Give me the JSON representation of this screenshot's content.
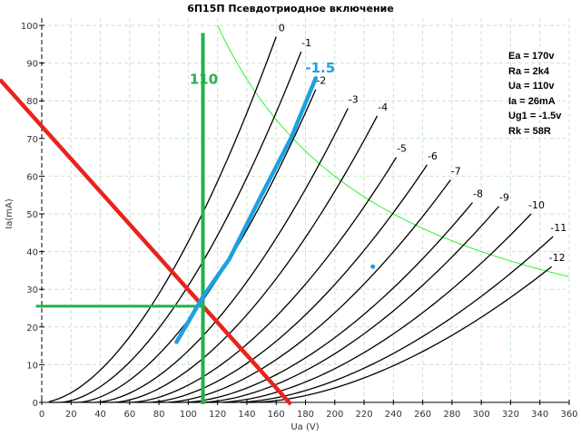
{
  "chart_data": {
    "type": "line",
    "title": "6П15П Псевдотриодное включение",
    "xlabel": "Ua (V)",
    "ylabel": "Ia(mA)",
    "xlim": [
      0,
      360
    ],
    "ylim": [
      0,
      100
    ],
    "xticks": [
      0,
      20,
      40,
      60,
      80,
      100,
      120,
      140,
      160,
      180,
      200,
      220,
      240,
      260,
      280,
      300,
      320,
      340,
      360
    ],
    "yticks": [
      0,
      10,
      20,
      30,
      40,
      50,
      60,
      70,
      80,
      90,
      100
    ],
    "grid": true,
    "curve_exponent": 1.75,
    "series": [
      {
        "name": "0",
        "u0": 0,
        "ua_end": 160,
        "ia_end": 97
      },
      {
        "name": "-1",
        "u0": 12,
        "ua_end": 177,
        "ia_end": 93
      },
      {
        "name": "-2",
        "u0": 24,
        "ua_end": 187,
        "ia_end": 83
      },
      {
        "name": "-3",
        "u0": 36,
        "ua_end": 209,
        "ia_end": 78
      },
      {
        "name": "-4",
        "u0": 48,
        "ua_end": 229,
        "ia_end": 76
      },
      {
        "name": "-5",
        "u0": 60,
        "ua_end": 242,
        "ia_end": 65
      },
      {
        "name": "-6",
        "u0": 72,
        "ua_end": 263,
        "ia_end": 63
      },
      {
        "name": "-7",
        "u0": 84,
        "ua_end": 279,
        "ia_end": 59
      },
      {
        "name": "-8",
        "u0": 96,
        "ua_end": 294,
        "ia_end": 53
      },
      {
        "name": "-9",
        "u0": 108,
        "ua_end": 312,
        "ia_end": 52
      },
      {
        "name": "-10",
        "u0": 120,
        "ua_end": 334,
        "ia_end": 50
      },
      {
        "name": "-11",
        "u0": 132,
        "ua_end": 349,
        "ia_end": 44
      },
      {
        "name": "-12",
        "u0": 143,
        "ua_end": 348,
        "ia_end": 36
      }
    ],
    "load_line": {
      "points": [
        [
          -28.5,
          85.6
        ],
        [
          170,
          -0.5
        ]
      ],
      "color": "#e8231e"
    },
    "operating_ua": {
      "value": 110,
      "label": "110",
      "ia_top": 98,
      "color": "#22b14c"
    },
    "operating_ia": {
      "value": 25.5,
      "ua_from": -4,
      "color": "#22b14c"
    },
    "grid_curve": {
      "name": "-1.5",
      "points": [
        [
          92,
          16
        ],
        [
          110,
          28
        ],
        [
          128,
          38
        ],
        [
          150,
          55
        ],
        [
          170,
          70
        ],
        [
          187,
          86
        ]
      ],
      "color": "#1ea0e0"
    },
    "marker_point": {
      "ua": 226,
      "ia": 36,
      "color": "#1ea0e0"
    },
    "dissipation_curve": {
      "power_w": 12,
      "color": "#00ee00"
    }
  },
  "params": [
    "Ea = 170v",
    "Ra = 2k4",
    "Ua = 110v",
    "Ia = 26mA",
    "Ug1 = -1.5v",
    "Rk = 58R"
  ]
}
